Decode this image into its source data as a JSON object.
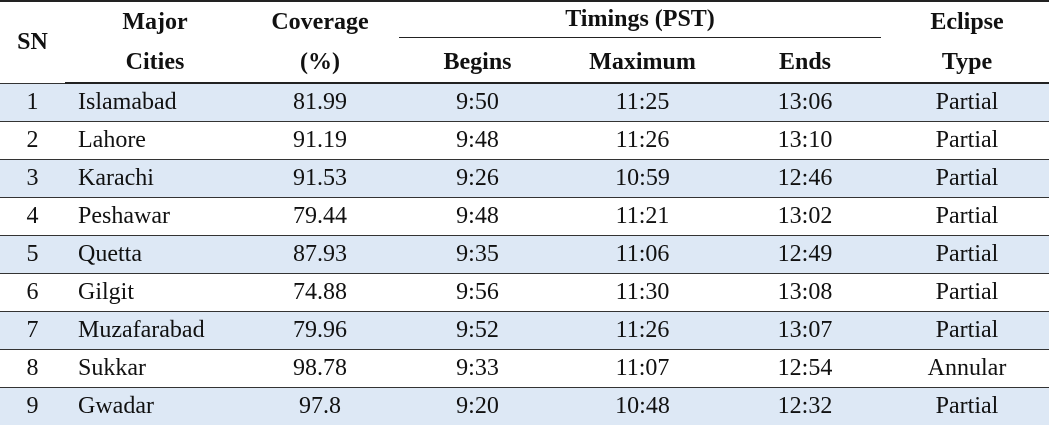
{
  "header": {
    "sn": "SN",
    "city": [
      "Major",
      "Cities"
    ],
    "coverage": [
      "Coverage",
      "(%)"
    ],
    "timings": "Timings (PST)",
    "begins": "Begins",
    "maximum": "Maximum",
    "ends": "Ends",
    "eclipse": [
      "Eclipse",
      "Type"
    ]
  },
  "table": {
    "rows": [
      [
        "1",
        "Islamabad",
        "81.99",
        "9:50",
        "11:25",
        "13:06",
        "Partial"
      ],
      [
        "2",
        "Lahore",
        "91.19",
        "9:48",
        "11:26",
        "13:10",
        "Partial"
      ],
      [
        "3",
        "Karachi",
        "91.53",
        "9:26",
        "10:59",
        "12:46",
        "Partial"
      ],
      [
        "4",
        "Peshawar",
        "79.44",
        "9:48",
        "11:21",
        "13:02",
        "Partial"
      ],
      [
        "5",
        "Quetta",
        "87.93",
        "9:35",
        "11:06",
        "12:49",
        "Partial"
      ],
      [
        "6",
        "Gilgit",
        "74.88",
        "9:56",
        "11:30",
        "13:08",
        "Partial"
      ],
      [
        "7",
        "Muzafarabad",
        "79.96",
        "9:52",
        "11:26",
        "13:07",
        "Partial"
      ],
      [
        "8",
        "Sukkar",
        "98.78",
        "9:33",
        "11:07",
        "12:54",
        "Annular"
      ],
      [
        "9",
        "Gwadar",
        "97.8",
        "9:20",
        "10:48",
        "12:32",
        "Partial"
      ]
    ]
  }
}
